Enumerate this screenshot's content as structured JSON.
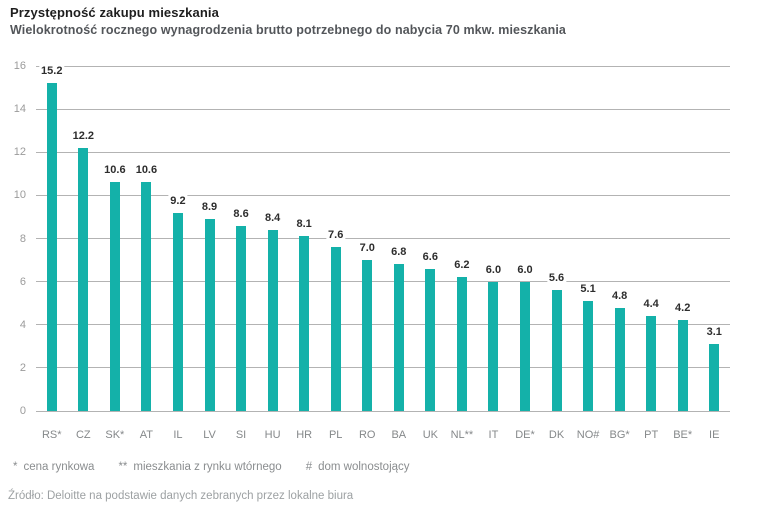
{
  "header": {
    "title": "Przystępność zakupu mieszkania",
    "subtitle": "Wielokrotność rocznego wynagrodzenia brutto potrzebnego do nabycia 70 mkw. mieszkania"
  },
  "chart_data": {
    "type": "bar",
    "categories": [
      "RS*",
      "CZ",
      "SK*",
      "AT",
      "IL",
      "LV",
      "SI",
      "HU",
      "HR",
      "PL",
      "RO",
      "BA",
      "UK",
      "NL**",
      "IT",
      "DE*",
      "DK",
      "NO#",
      "BG*",
      "PT",
      "BE*",
      "IE"
    ],
    "values": [
      15.2,
      12.2,
      10.6,
      10.6,
      9.2,
      8.9,
      8.6,
      8.4,
      8.1,
      7.6,
      7.0,
      6.8,
      6.6,
      6.2,
      6.0,
      6.0,
      5.6,
      5.1,
      4.8,
      4.4,
      4.2,
      3.1
    ],
    "title": "Przystępność zakupu mieszkania",
    "subtitle": "Wielokrotność rocznego wynagrodzenia brutto potrzebnego do nabycia 70 mkw. mieszkania",
    "xlabel": "",
    "ylabel": "",
    "ylim": [
      0,
      16
    ],
    "ytick_step": 2,
    "ytick_labels": [
      "0",
      "2",
      "4",
      "6",
      "8",
      "10",
      "12",
      "14",
      "16"
    ],
    "grid": true,
    "legend": false,
    "value_label_decimals": 1,
    "bar_color": "#14b1a9"
  },
  "footnotes": [
    {
      "symbol": "*",
      "text": "cena rynkowa"
    },
    {
      "symbol": "**",
      "text": "mieszkania z rynku wtórnego"
    },
    {
      "symbol": "#",
      "text": "dom wolnostojący"
    }
  ],
  "source": "Źródło: Deloitte na podstawie danych zebranych przez lokalne biura",
  "colors": {
    "bar": "#14b1a9",
    "gridline": "#b3b3b3",
    "title": "#1e1e1e",
    "subtitle": "#53565a",
    "value_label": "#2d2d2d",
    "axis_tick": "#9b9b9b",
    "x_tick": "#85888a",
    "footnote": "#8a8d8f",
    "source": "#9da1a3"
  }
}
